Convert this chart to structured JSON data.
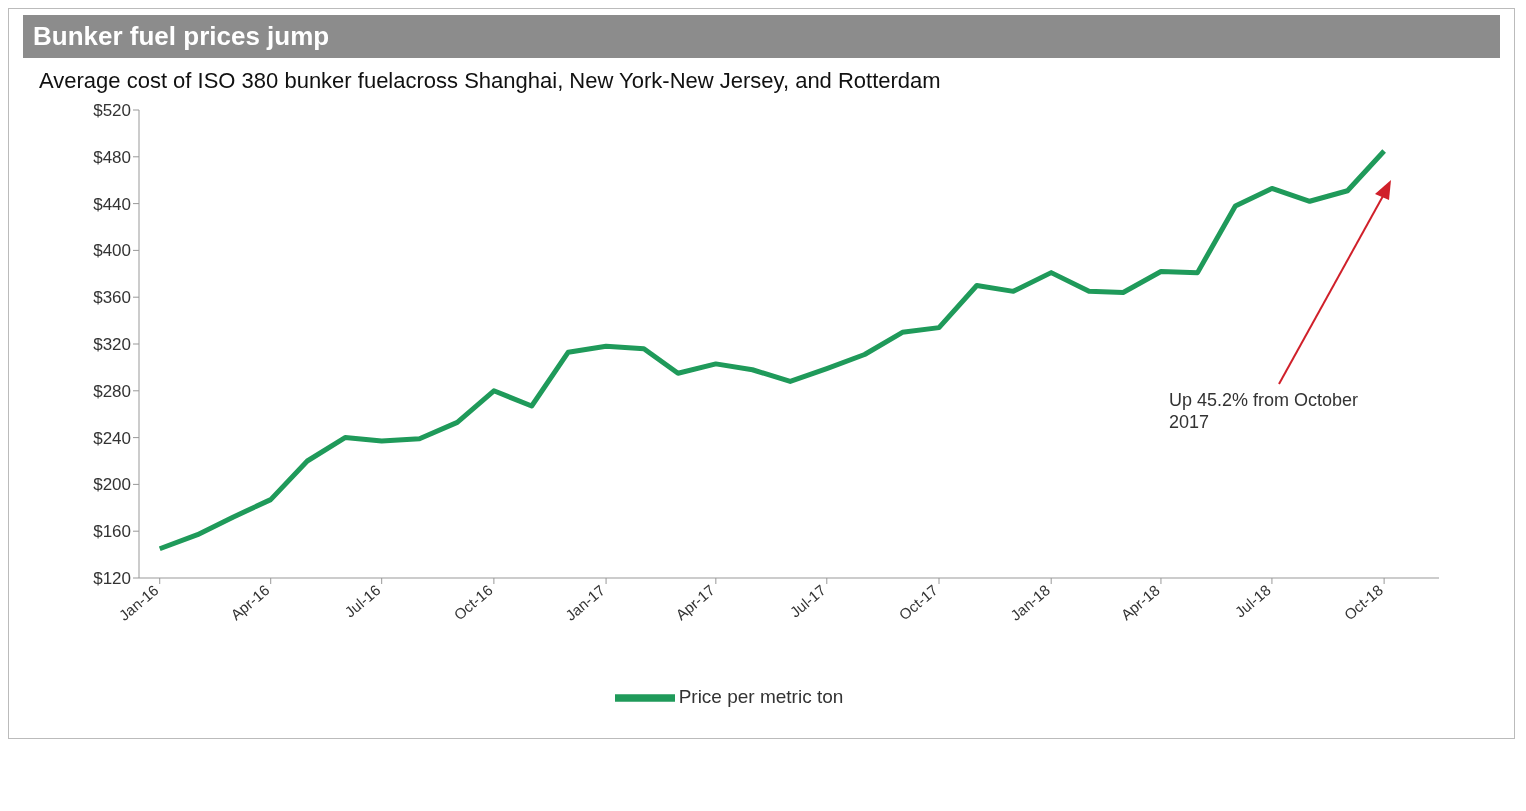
{
  "chart_data": {
    "type": "line",
    "title": "Bunker fuel prices jump",
    "subtitle": "Average cost of ISO 380 bunker fuelacross Shanghai, New York-New Jersey, and Rotterdam",
    "x": [
      "2016-01",
      "2016-02",
      "2016-03",
      "2016-04",
      "2016-05",
      "2016-06",
      "2016-07",
      "2016-08",
      "2016-09",
      "2016-10",
      "2016-11",
      "2016-12",
      "2017-01",
      "2017-02",
      "2017-03",
      "2017-04",
      "2017-05",
      "2017-06",
      "2017-07",
      "2017-08",
      "2017-09",
      "2017-10",
      "2017-11",
      "2017-12",
      "2018-01",
      "2018-02",
      "2018-03",
      "2018-04",
      "2018-05",
      "2018-06",
      "2018-07",
      "2018-08",
      "2018-09",
      "2018-10"
    ],
    "series": [
      {
        "name": "Price per metric ton",
        "color": "#1f9a5a",
        "values": [
          145,
          157,
          172,
          187,
          220,
          240,
          237,
          239,
          253,
          280,
          267,
          313,
          318,
          316,
          295,
          303,
          298,
          288,
          299,
          311,
          330,
          334,
          370,
          365,
          381,
          365,
          364,
          382,
          381,
          438,
          453,
          442,
          451,
          485
        ]
      }
    ],
    "xlim": [
      "2015-12-15",
      "2018-11-15"
    ],
    "xticks": [
      {
        "value": "2016-01",
        "label": "Jan-16"
      },
      {
        "value": "2016-04",
        "label": "Apr-16"
      },
      {
        "value": "2016-07",
        "label": "Jul-16"
      },
      {
        "value": "2016-10",
        "label": "Oct-16"
      },
      {
        "value": "2017-01",
        "label": "Jan-17"
      },
      {
        "value": "2017-04",
        "label": "Apr-17"
      },
      {
        "value": "2017-07",
        "label": "Jul-17"
      },
      {
        "value": "2017-10",
        "label": "Oct-17"
      },
      {
        "value": "2018-01",
        "label": "Jan-18"
      },
      {
        "value": "2018-04",
        "label": "Apr-18"
      },
      {
        "value": "2018-07",
        "label": "Jul-18"
      },
      {
        "value": "2018-10",
        "label": "Oct-18"
      }
    ],
    "ylim": [
      120,
      520
    ],
    "yticks": [
      {
        "value": 120,
        "label": "$120"
      },
      {
        "value": 160,
        "label": "$160"
      },
      {
        "value": 200,
        "label": "$200"
      },
      {
        "value": 240,
        "label": "$240"
      },
      {
        "value": 280,
        "label": "$280"
      },
      {
        "value": 320,
        "label": "$320"
      },
      {
        "value": 360,
        "label": "$360"
      },
      {
        "value": 400,
        "label": "$400"
      },
      {
        "value": 440,
        "label": "$440"
      },
      {
        "value": 480,
        "label": "$480"
      },
      {
        "value": 520,
        "label": "$520"
      }
    ],
    "annotations": [
      "Up 45.2% from October 2017"
    ],
    "grid": false,
    "legend": "bottom",
    "marker": "none",
    "line_style": "solid"
  }
}
